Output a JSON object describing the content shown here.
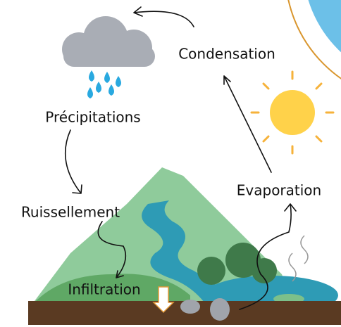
{
  "nodes": [
    {
      "label": "Condensation"
    },
    {
      "label": "Précipitations"
    },
    {
      "label": "Ruissellement"
    },
    {
      "label": "Infiltration"
    },
    {
      "label": "Evaporation"
    }
  ]
}
